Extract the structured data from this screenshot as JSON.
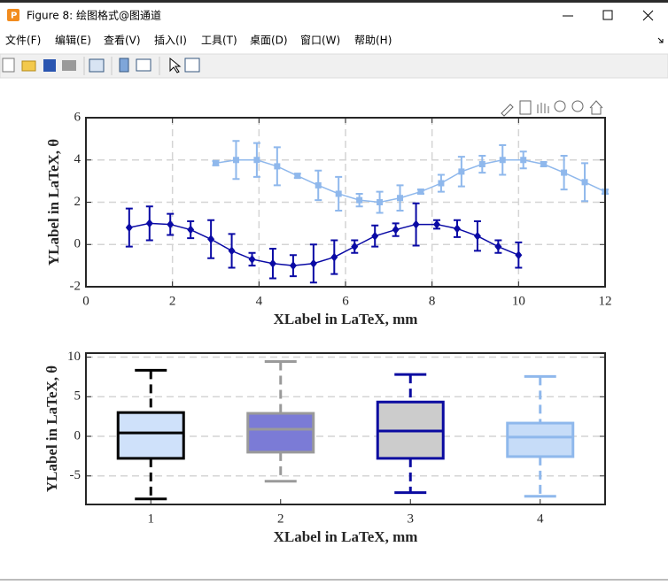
{
  "window": {
    "title": "Figure 8: 绘图格式@图通道",
    "menu": [
      "文件(F)",
      "编辑(E)",
      "查看(V)",
      "插入(I)",
      "工具(T)",
      "桌面(D)",
      "窗口(W)",
      "帮助(H)"
    ]
  },
  "chart_data": [
    {
      "type": "errorbar",
      "xlabel": "XLabel in LaTeX, mm",
      "ylabel": "YLabel in LaTeX, θ",
      "xlim": [
        0,
        12
      ],
      "xticks": [
        0,
        2,
        4,
        6,
        8,
        10,
        12
      ],
      "ylim": [
        -2,
        6
      ],
      "yticks": [
        -2,
        0,
        2,
        4,
        6
      ],
      "grid": true,
      "series": [
        {
          "color": "#0a0aa5",
          "marker": "diamond",
          "x": [
            1,
            1.47,
            1.95,
            2.42,
            2.89,
            3.37,
            3.84,
            4.32,
            4.79,
            5.26,
            5.74,
            6.21,
            6.68,
            7.16,
            7.63,
            8.11,
            8.58,
            9.05,
            9.53,
            10
          ],
          "values": [
            0.8,
            1.0,
            0.95,
            0.7,
            0.25,
            -0.3,
            -0.7,
            -0.9,
            -1.0,
            -0.9,
            -0.6,
            -0.1,
            0.4,
            0.7,
            0.95,
            0.95,
            0.75,
            0.4,
            -0.1,
            -0.5
          ],
          "errors": [
            0.9,
            0.8,
            0.5,
            0.4,
            0.9,
            0.8,
            0.3,
            0.7,
            0.5,
            0.9,
            0.8,
            0.3,
            0.5,
            0.3,
            1.0,
            0.2,
            0.4,
            0.7,
            0.3,
            0.6
          ]
        },
        {
          "color": "#8fb8ec",
          "marker": "square",
          "x": [
            3,
            3.47,
            3.95,
            4.42,
            4.89,
            5.37,
            5.84,
            6.32,
            6.79,
            7.26,
            7.74,
            8.21,
            8.68,
            9.16,
            9.63,
            10.11,
            10.58,
            11.05,
            11.53,
            12
          ],
          "values": [
            3.85,
            4.0,
            4.0,
            3.7,
            3.25,
            2.8,
            2.4,
            2.1,
            2.0,
            2.2,
            2.5,
            2.9,
            3.45,
            3.8,
            4.0,
            4.0,
            3.8,
            3.4,
            2.95,
            2.5
          ],
          "errors": [
            0.1,
            0.9,
            0.8,
            0.9,
            0.1,
            0.7,
            0.8,
            0.3,
            0.5,
            0.6,
            0.1,
            0.4,
            0.7,
            0.4,
            0.7,
            0.4,
            0.1,
            0.8,
            0.9,
            0.1
          ]
        }
      ]
    },
    {
      "type": "box",
      "xlabel": "XLabel in LaTeX, mm",
      "ylabel": "YLabel in LaTeX, θ",
      "categories": [
        "1",
        "2",
        "3",
        "4"
      ],
      "ylim": [
        -8.6,
        10.5
      ],
      "yticks": [
        -5,
        0,
        5,
        10
      ],
      "grid": true,
      "boxes": [
        {
          "whisker_low": -7.9,
          "q1": -2.78,
          "median": 0.44,
          "q3": 3.0,
          "whisker_high": 8.33,
          "fill": "#cfe1fa",
          "stroke": "#000000"
        },
        {
          "whisker_low": -5.67,
          "q1": -2.0,
          "median": 0.9,
          "q3": 2.9,
          "whisker_high": 9.44,
          "fill": "#7b7bd6",
          "stroke": "#9a9a9a"
        },
        {
          "whisker_low": -7.1,
          "q1": -2.78,
          "median": 0.67,
          "q3": 4.33,
          "whisker_high": 7.8,
          "fill": "#cccccc",
          "stroke": "#0a0aa0"
        },
        {
          "whisker_low": -7.56,
          "q1": -2.56,
          "median": -0.1,
          "q3": 1.67,
          "whisker_high": 7.56,
          "fill": "#c6dcf8",
          "stroke": "#8fb8ec"
        }
      ]
    }
  ]
}
